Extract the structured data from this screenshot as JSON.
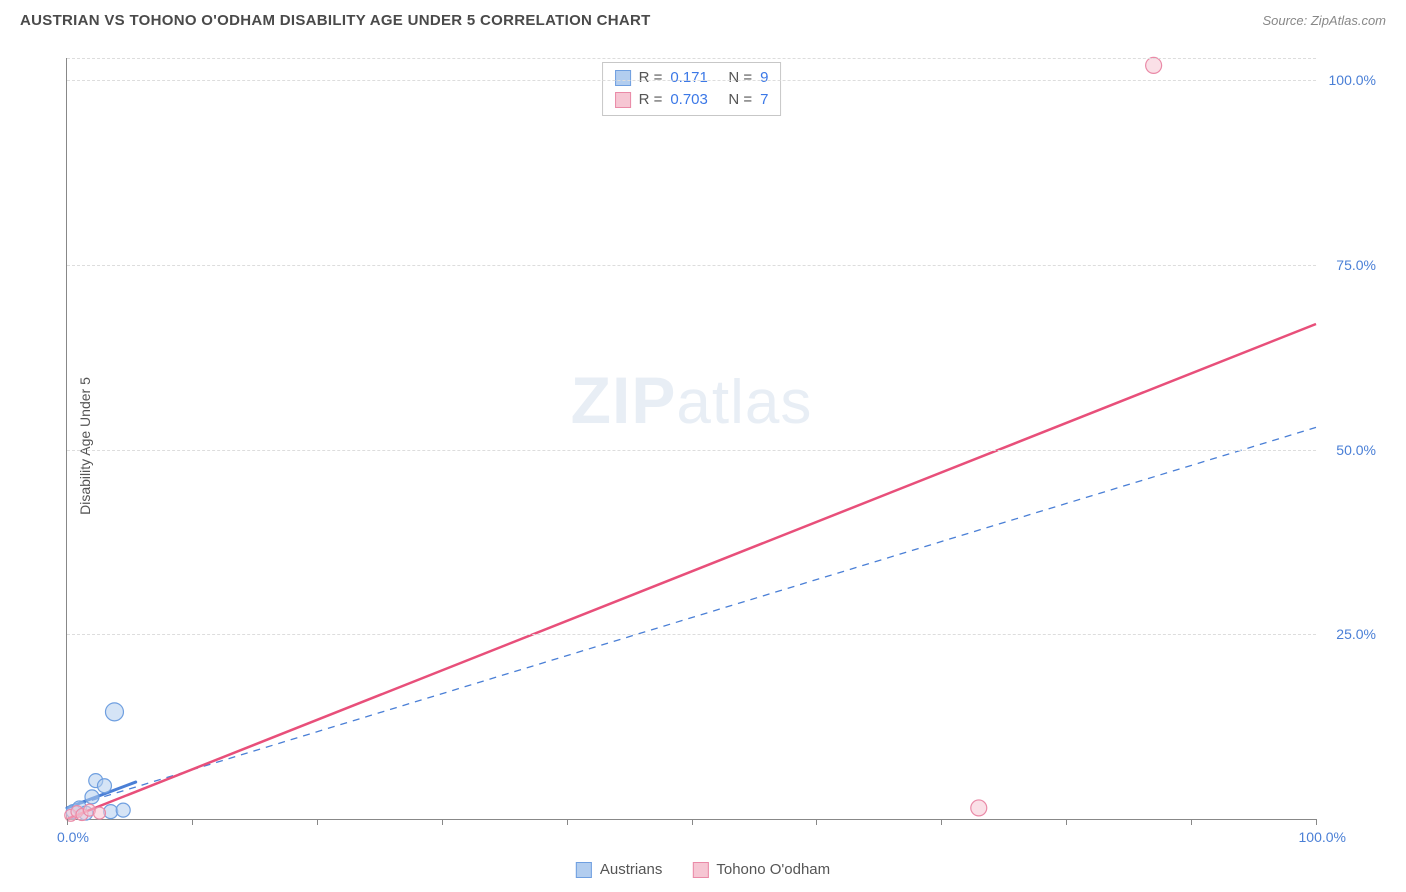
{
  "header": {
    "title": "AUSTRIAN VS TOHONO O'ODHAM DISABILITY AGE UNDER 5 CORRELATION CHART",
    "source_label": "Source: ZipAtlas.com"
  },
  "chart": {
    "type": "scatter-with-trend",
    "ylabel": "Disability Age Under 5",
    "xlim": [
      0,
      100
    ],
    "ylim": [
      0,
      103
    ],
    "xtick_positions": [
      0,
      10,
      20,
      30,
      40,
      50,
      60,
      70,
      80,
      90,
      100
    ],
    "x_axis_labels": {
      "start": "0.0%",
      "end": "100.0%"
    },
    "ytick_grid": [
      {
        "value": 25,
        "label": "25.0%"
      },
      {
        "value": 50,
        "label": "50.0%"
      },
      {
        "value": 75,
        "label": "75.0%"
      },
      {
        "value": 100,
        "label": "100.0%"
      },
      {
        "value": 103,
        "label": ""
      }
    ],
    "background_color": "#ffffff",
    "grid_color": "#dddddd",
    "axis_color": "#888888",
    "tick_label_color": "#4a7fd6",
    "watermark_text_1": "ZIP",
    "watermark_text_2": "atlas",
    "series": [
      {
        "name": "Austrians",
        "color_fill": "#b2cdef",
        "color_stroke": "#6f9fe0",
        "R": "0.171",
        "N": "9",
        "marker_radius_px": 7,
        "points": [
          {
            "x": 0.5,
            "y": 1.0
          },
          {
            "x": 1.0,
            "y": 1.5
          },
          {
            "x": 1.5,
            "y": 0.8
          },
          {
            "x": 2.0,
            "y": 3.0
          },
          {
            "x": 2.3,
            "y": 5.2
          },
          {
            "x": 3.0,
            "y": 4.5
          },
          {
            "x": 3.5,
            "y": 1.0
          },
          {
            "x": 4.5,
            "y": 1.2
          },
          {
            "x": 3.8,
            "y": 14.5,
            "radius_px": 9
          }
        ],
        "trend": {
          "x1": 0,
          "y1": 1.5,
          "x2": 100,
          "y2": 53,
          "style": "dashed",
          "stroke": "#4a7fd6",
          "width": 1.3
        },
        "trend_solid_segment": {
          "x1": 0,
          "y1": 1.5,
          "x2": 5.5,
          "y2": 5.0,
          "stroke": "#4a7fd6",
          "width": 3
        }
      },
      {
        "name": "Tohono O'odham",
        "color_fill": "#f6c6d3",
        "color_stroke": "#ea8aa7",
        "R": "0.703",
        "N": "7",
        "marker_radius_px": 6,
        "points": [
          {
            "x": 0.3,
            "y": 0.5
          },
          {
            "x": 0.8,
            "y": 1.0
          },
          {
            "x": 1.2,
            "y": 0.6
          },
          {
            "x": 1.8,
            "y": 1.2
          },
          {
            "x": 2.6,
            "y": 0.8
          },
          {
            "x": 73,
            "y": 1.5,
            "radius_px": 8
          },
          {
            "x": 87,
            "y": 102,
            "radius_px": 8
          }
        ],
        "trend": {
          "x1": 0,
          "y1": 0,
          "x2": 100,
          "y2": 67,
          "style": "solid",
          "stroke": "#e84f7a",
          "width": 2.5
        }
      }
    ],
    "stats_box": {
      "rows": [
        {
          "swatch_fill": "#b2cdef",
          "swatch_stroke": "#6f9fe0",
          "r_label": "R =",
          "r_val": "0.171",
          "n_label": "N =",
          "n_val": "9"
        },
        {
          "swatch_fill": "#f6c6d3",
          "swatch_stroke": "#ea8aa7",
          "r_label": "R =",
          "r_val": "0.703",
          "n_label": "N =",
          "n_val": "7"
        }
      ]
    },
    "bottom_legend": [
      {
        "swatch_fill": "#b2cdef",
        "swatch_stroke": "#6f9fe0",
        "label": "Austrians"
      },
      {
        "swatch_fill": "#f6c6d3",
        "swatch_stroke": "#ea8aa7",
        "label": "Tohono O'odham"
      }
    ]
  }
}
